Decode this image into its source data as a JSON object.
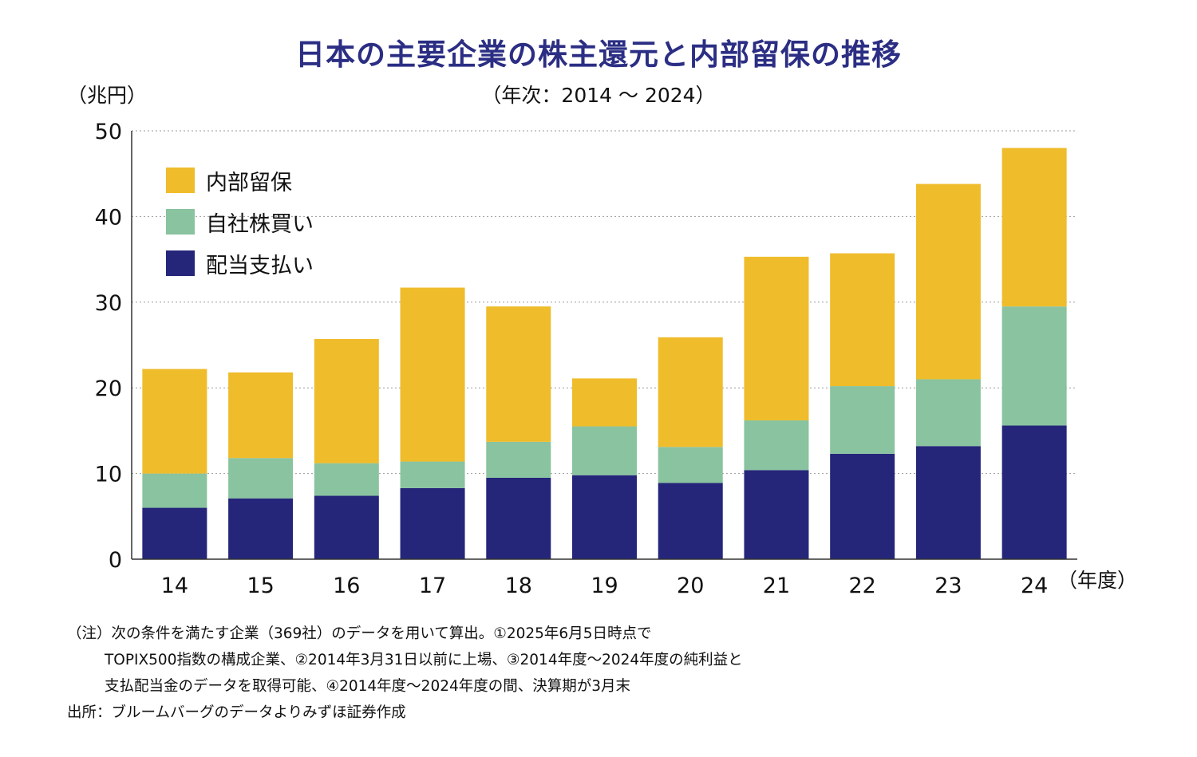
{
  "chart_data": {
    "type": "bar",
    "stacked": true,
    "title": "日本の主要企業の株主還元と内部留保の推移",
    "subtitle": "（年次：2014 〜 2024）",
    "ylabel": "（兆円）",
    "xlabel": "（年度）",
    "categories": [
      "14",
      "15",
      "16",
      "17",
      "18",
      "19",
      "20",
      "21",
      "22",
      "23",
      "24"
    ],
    "ylim": [
      0,
      50
    ],
    "yticks": [
      "0",
      "10",
      "20",
      "30",
      "40",
      "50"
    ],
    "grid": true,
    "legend_placement": "top-left",
    "series": [
      {
        "name": "配当支払い",
        "color": "#25267a",
        "values": [
          6.0,
          7.1,
          7.4,
          8.3,
          9.5,
          9.8,
          8.9,
          10.4,
          12.3,
          13.2,
          15.6
        ]
      },
      {
        "name": "自社株買い",
        "color": "#89c39f",
        "values": [
          4.0,
          4.7,
          3.8,
          3.1,
          4.2,
          5.7,
          4.2,
          5.8,
          7.9,
          7.8,
          13.9
        ]
      },
      {
        "name": "内部留保",
        "color": "#efbc2c",
        "values": [
          12.2,
          10.0,
          14.5,
          20.3,
          15.8,
          5.6,
          12.8,
          19.1,
          15.5,
          22.8,
          18.5
        ]
      }
    ]
  },
  "legend_order": [
    "内部留保",
    "自社株買い",
    "配当支払い"
  ],
  "notes": {
    "line1": "（注）次の条件を満たす企業（369社）のデータを用いて算出。①2025年6月5日時点で",
    "line2": "TOPIX500指数の構成企業、②2014年3月31日以前に上場、③2014年度〜2024年度の純利益と",
    "line3": "支払配当金のデータを取得可能、④2014年度〜2024年度の間、決算期が3月末",
    "source": "出所：ブルームバーグのデータよりみずほ証券作成"
  }
}
